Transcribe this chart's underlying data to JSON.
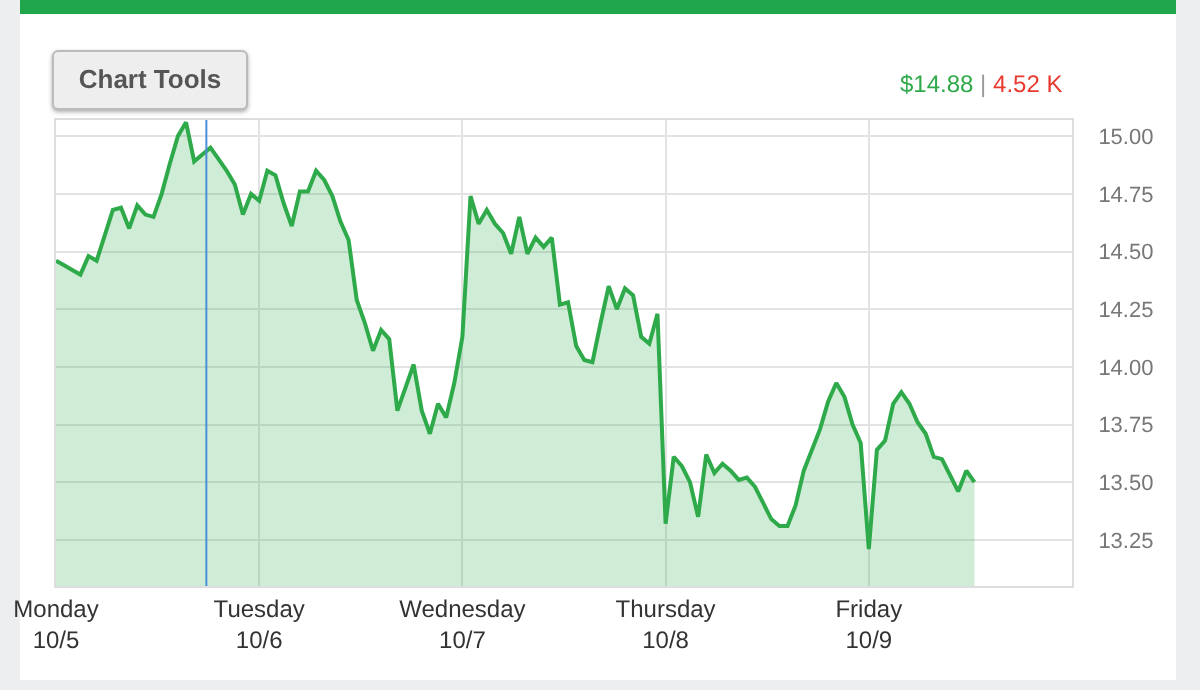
{
  "chart_data": {
    "type": "area",
    "categories": [
      "Monday\n10/5",
      null,
      null,
      null,
      null,
      null,
      null,
      null,
      null,
      null,
      null,
      null,
      null,
      null,
      null,
      null,
      null,
      null,
      null,
      null,
      null,
      null,
      null,
      null,
      null,
      "Tuesday\n10/6",
      null,
      null,
      null,
      null,
      null,
      null,
      null,
      null,
      null,
      null,
      null,
      null,
      null,
      null,
      null,
      null,
      null,
      null,
      null,
      null,
      null,
      null,
      null,
      null,
      "Wednesday\n10/7",
      null,
      null,
      null,
      null,
      null,
      null,
      null,
      null,
      null,
      null,
      null,
      null,
      null,
      null,
      null,
      null,
      null,
      null,
      null,
      null,
      null,
      null,
      null,
      null,
      "Thursday\n10/8",
      null,
      null,
      null,
      null,
      null,
      null,
      null,
      null,
      null,
      null,
      null,
      null,
      null,
      null,
      null,
      null,
      null,
      null,
      null,
      null,
      null,
      null,
      null,
      null,
      "Friday\n10/9",
      null,
      null,
      null,
      null,
      null,
      null,
      null,
      null,
      null,
      null,
      null,
      null,
      null,
      null,
      null,
      null,
      null,
      null,
      null,
      null,
      null,
      null,
      null,
      null
    ],
    "series": [
      {
        "color": "#2eaa4a",
        "values": [
          14.46,
          14.44,
          14.42,
          14.4,
          14.48,
          14.46,
          14.57,
          14.68,
          14.69,
          14.6,
          14.7,
          14.66,
          14.65,
          14.75,
          14.88,
          15.0,
          15.06,
          14.89,
          14.92,
          14.95,
          14.9,
          14.85,
          14.79,
          14.66,
          14.75,
          14.72,
          14.85,
          14.83,
          14.71,
          14.61,
          14.76,
          14.76,
          14.85,
          14.81,
          14.74,
          14.63,
          14.55,
          14.29,
          14.19,
          14.07,
          14.16,
          14.12,
          13.81,
          13.91,
          14.01,
          13.81,
          13.71,
          13.84,
          13.78,
          13.93,
          14.13,
          14.74,
          14.62,
          14.68,
          14.62,
          14.58,
          14.49,
          14.65,
          14.49,
          14.56,
          14.52,
          14.56,
          14.27,
          14.28,
          14.09,
          14.03,
          14.02,
          14.19,
          14.35,
          14.25,
          14.34,
          14.31,
          14.13,
          14.1,
          14.23,
          13.32,
          13.61,
          13.57,
          13.5,
          13.35,
          13.62,
          13.54,
          13.58,
          13.55,
          13.51,
          13.52,
          13.48,
          13.41,
          13.34,
          13.31,
          13.31,
          13.4,
          13.55,
          13.64,
          13.73,
          13.85,
          13.93,
          13.87,
          13.75,
          13.67,
          13.21,
          13.64,
          13.68,
          13.84,
          13.89,
          13.84,
          13.76,
          13.71,
          13.61,
          13.6,
          13.53,
          13.46,
          13.55,
          13.5,
          null,
          null,
          null,
          null,
          null,
          null,
          null,
          null,
          null,
          null,
          null
        ]
      }
    ],
    "ylim": [
      13.05,
      15.07
    ],
    "yticks": [
      {
        "value": 13.25,
        "label": "13.25"
      },
      {
        "value": 13.5,
        "label": "13.50"
      },
      {
        "value": 13.75,
        "label": "13.75"
      },
      {
        "value": 14,
        "label": "14.00"
      },
      {
        "value": 14.25,
        "label": "14.25"
      },
      {
        "value": 14.5,
        "label": "14.50"
      },
      {
        "value": 14.75,
        "label": "14.75"
      },
      {
        "value": 15,
        "label": "15.00"
      }
    ],
    "grid": true,
    "annotations": [
      "Chart Tools",
      "$14.88",
      "|",
      "4.52 K"
    ]
  }
}
